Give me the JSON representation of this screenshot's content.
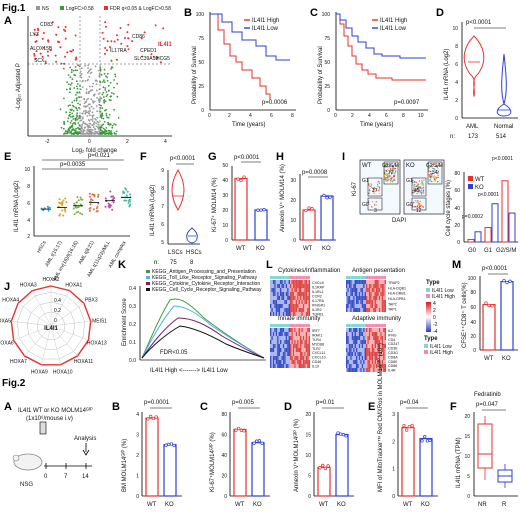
{
  "figure": {
    "fig1_title": "Fig.1",
    "fig2_title": "Fig.2",
    "panel_letters": [
      "A",
      "B",
      "C",
      "D",
      "E",
      "F",
      "G",
      "H",
      "I",
      "J",
      "K",
      "L",
      "M"
    ],
    "panel_letters_fig2": [
      "A",
      "B",
      "C",
      "D",
      "E",
      "F"
    ]
  },
  "colors": {
    "red": "#e8312f",
    "blue": "#2f3fd6",
    "green": "#3a9b3a",
    "grey": "#9a9a9a"
  },
  "panelA": {
    "legend": [
      "NS",
      "LogFC>0.58",
      "FDR q<0.05 & LogFC>0.58"
    ],
    "xlabel": "Log₂ fold change",
    "ylabel": "-Log₁₀ Adjusted P",
    "xticks": [
      "-2",
      "0",
      "2",
      "4"
    ],
    "genes": [
      "IL4I1",
      "CD83",
      "LYZ",
      "ALOX15B",
      "SCX",
      "IL17RA",
      "CD86",
      "CPED1",
      "SLC39A10",
      "HCG5"
    ]
  },
  "panelB": {
    "xlabel": "Time (years)",
    "ylabel": "Probability of Survival",
    "xticks": [
      "0",
      "2",
      "4",
      "6",
      "8"
    ],
    "yticks": [
      "0",
      "25",
      "50",
      "75",
      "100"
    ],
    "legend": [
      "IL4I1 High",
      "IL4I1 Low"
    ],
    "pvalue": "p=0.0006"
  },
  "panelC": {
    "xlabel": "Time (years)",
    "ylabel": "Probability of Survival",
    "xticks": [
      "0",
      "2",
      "4",
      "6",
      "8",
      "10"
    ],
    "yticks": [
      "0",
      "25",
      "50",
      "75",
      "100"
    ],
    "legend": [
      "IL4I1 High",
      "IL4I1 Low"
    ],
    "pvalue": "p=0.0097"
  },
  "panelD": {
    "ylabel": "IL4I1 mRNA (Log2)",
    "pvalue": "p<0.0001",
    "groups": [
      "AML",
      "Normal"
    ],
    "n_label": "n:",
    "n": [
      "173",
      "514"
    ],
    "yticks": [
      "0",
      "2",
      "4",
      "6",
      "8",
      "10"
    ]
  },
  "panelE": {
    "ylabel": "IL4I1 mRNA (Log2)",
    "pvalues": [
      "p=0.0035",
      "p=0.021"
    ],
    "yticks": [
      "2",
      "4",
      "6",
      "8",
      "10"
    ],
    "groups": [
      "HSCs",
      "AML t(15;17)",
      "AML inv(16)/t(16;16)",
      "AML t(8;21)",
      "AML t(11q23)/MLL",
      "AML complex"
    ]
  },
  "panelF": {
    "ylabel": "IL4I1 mRNA (Log2)",
    "pvalue": "p<0.0001",
    "groups": [
      "LSCs",
      "HSCs"
    ],
    "n_label": "n:",
    "n": [
      "75",
      "8"
    ],
    "yticks": [
      "5",
      "6",
      "7",
      "8",
      "9"
    ]
  },
  "panelG": {
    "ylabel": "Ki-67⁺ MOLM14 (%)",
    "pvalue": "p<0.0001",
    "groups": [
      "WT",
      "KO"
    ],
    "yticks": [
      "0",
      "10",
      "20",
      "30",
      "40",
      "50"
    ],
    "values": [
      41,
      20
    ]
  },
  "panelH": {
    "ylabel": "Annexin V⁺ MOLM14 (%)",
    "pvalue": "p=0.0008",
    "groups": [
      "WT",
      "KO"
    ],
    "yticks": [
      "0",
      "10",
      "20",
      "30"
    ],
    "values": [
      15,
      22
    ]
  },
  "panelI": {
    "flow_wt": {
      "title": "WT",
      "gates": [
        "G0",
        "G1",
        "G2/S/M"
      ],
      "values": [
        "3",
        "17",
        "72"
      ]
    },
    "flow_ko": {
      "title": "KO",
      "gates": [
        "G0",
        "G1",
        "G2/S/M"
      ],
      "values": [
        "12",
        "45",
        "34"
      ]
    },
    "flow_xlabel": "DAPI",
    "flow_ylabel": "Ki-67",
    "ylabel": "Cell cycle stages (%)",
    "yticks": [
      "0",
      "20",
      "40",
      "60",
      "80"
    ],
    "categories": [
      "G0",
      "G1",
      "G2/S/M"
    ],
    "legend": [
      "WT",
      "KO"
    ],
    "pvalues": [
      "p=0.0002",
      "p<0.0001",
      "p<0.0001"
    ],
    "series": [
      {
        "name": "WT",
        "values": [
          3,
          17,
          72
        ]
      },
      {
        "name": "KO",
        "values": [
          12,
          45,
          34
        ]
      }
    ]
  },
  "panelJ": {
    "center": "IL4I1",
    "nodes": [
      "HOXA2",
      "HOXA1",
      "PBX3",
      "MEIS1",
      "HOXA13",
      "HOXA11",
      "HOXA10",
      "HOXA9",
      "HOXA7",
      "HOXA6",
      "HOXA5",
      "HOXA4",
      "HOXA3"
    ],
    "rings": [
      "0",
      "0.2",
      "0.4"
    ]
  },
  "panelK": {
    "ylabel": "Enrichment Score",
    "xlabel": "IL4I1 High <-------> IL4I1 Low",
    "fdr": "FDR<0.05",
    "yticks": [
      "0.0",
      "0.1",
      "0.2",
      "0.3",
      "0.4"
    ],
    "legend": [
      "KEGG_Antigen_Processing_and_Presentation",
      "KEGG_Toll_Like_Receptor_Signaling_Pathway",
      "KEGG_Cytokine_Cytokine_Receptor_Interaction",
      "KEGG_Cell_Cycle_Receptor_Signaling_Pathway"
    ]
  },
  "panelL": {
    "block_titles": [
      "Cytokines/Inflammation",
      "Antigen pesentation",
      "Innate immunity",
      "Adaptive immunity"
    ],
    "legend_title": "Type",
    "legend_types": [
      "IL4I1 Low",
      "IL4I1 High"
    ],
    "scale": [
      "4",
      "2",
      "0",
      "-2",
      "-4"
    ],
    "genes_cyto": [
      "CXCL8",
      "IL1RAP",
      "IL1RL1",
      "CCR2",
      "IL17RA",
      "IFNGR1",
      "IL1R2",
      "TGFB1"
    ],
    "genes_antigen": [
      "TRAP2",
      "HLA-DQB1",
      "HLA-DRB1",
      "HLA-DPB1",
      "TAP2",
      "TAP1"
    ],
    "genes_innate": [
      "IRF7",
      "IRAK1",
      "TLR4",
      "MYD88",
      "TLR7",
      "CXCL11",
      "CXCL10",
      "CD46",
      "IL10"
    ],
    "genes_adaptive": [
      "IL2",
      "IFNG",
      "CD4",
      "CD247",
      "CD3E",
      "CD3G",
      "CD8A",
      "CD80",
      "CD86",
      "IL4R"
    ]
  },
  "panelM": {
    "ylabel": "CFSE⁺⁺CD8⁺ T cells(%)",
    "pvalue": "p<0.0001",
    "groups": [
      "WT",
      "KO"
    ],
    "yticks": [
      "0",
      "20",
      "40",
      "60",
      "80",
      "100"
    ],
    "values": [
      63,
      95
    ]
  },
  "fig2A": {
    "text1": "IL4I1 WT or KO MOLM14ᴳᶠᴾ",
    "text2": "(1x10⁶/mouse i.v)",
    "mouse": "NSG",
    "analysis": "Analysis",
    "timeline": [
      "0",
      "7",
      "14"
    ]
  },
  "fig2B": {
    "ylabel": "BM MOLM14ᴳᶠᴾ (%)",
    "pvalue": "p=0.0001",
    "groups": [
      "WT",
      "KO"
    ],
    "yticks": [
      "0",
      "1",
      "2",
      "3",
      "4"
    ],
    "values": [
      3.8,
      2.5
    ]
  },
  "fig2C": {
    "ylabel": "Ki-67⁺MOLM14ᴳᶠᴾ (%)",
    "pvalue": "p=0.005",
    "groups": [
      "WT",
      "KO"
    ],
    "yticks": [
      "0",
      "20",
      "40",
      "60",
      "80"
    ],
    "values": [
      65,
      52
    ]
  },
  "fig2D": {
    "ylabel": "Annexin V⁺MOLM14ᴳᶠᴾ (%)",
    "pvalue": "p=0.01",
    "groups": [
      "WT",
      "KO"
    ],
    "yticks": [
      "0",
      "5",
      "10",
      "15",
      "20"
    ],
    "values": [
      7,
      15
    ]
  },
  "fig2E": {
    "ylabel": "MFI of MitoTracker™ Red CMXRos in MOLM14ᴳᶠᴾ (10⁴)",
    "pvalue": "p=0.04",
    "groups": [
      "WT",
      "KO"
    ],
    "yticks": [
      "0",
      "1",
      "2",
      "3"
    ],
    "values": [
      2.5,
      2.1
    ]
  },
  "fig2F": {
    "title": "Fedratinib",
    "ylabel": "IL4I1 mRNA (TPM)",
    "pvalue": "p=0.047",
    "groups": [
      "NR",
      "R"
    ],
    "yticks": [
      "0",
      "5",
      "10",
      "15",
      "20"
    ]
  }
}
